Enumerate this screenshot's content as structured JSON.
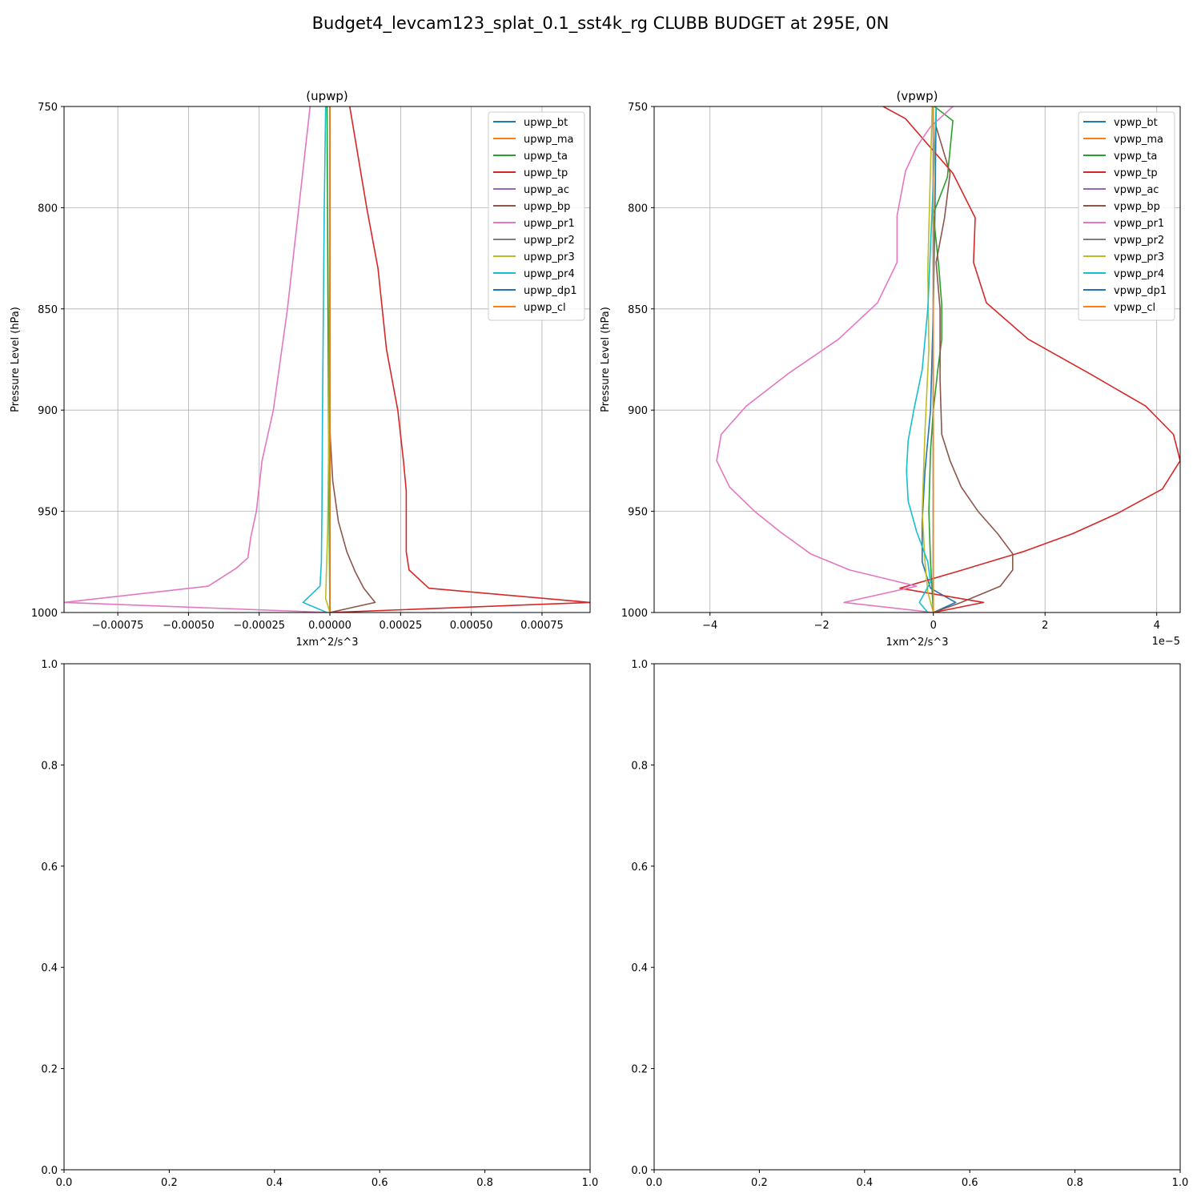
{
  "figure": {
    "suptitle": "Budget4_levcam123_splat_0.1_sst4k_rg CLUBB BUDGET at 295E, 0N"
  },
  "colors": {
    "bt": "#1f77b4",
    "ma": "#ff7f0e",
    "ta": "#2ca02c",
    "tp": "#d62728",
    "ac": "#9467bd",
    "bp": "#8c564b",
    "pr1": "#e377c2",
    "pr2": "#7f7f7f",
    "pr3": "#bcbd22",
    "pr4": "#17becf",
    "dp1": "#1f77b4",
    "cl": "#ff7f0e",
    "grid": "#b0b0b0"
  },
  "chart_data": [
    {
      "type": "line",
      "title": "(upwp)",
      "xlabel": "1xm^2/s^3",
      "ylabel": "Pressure Level (hPa)",
      "xlim": [
        -0.00094,
        0.00092
      ],
      "ylim": [
        1000,
        750
      ],
      "y_inverted": true,
      "xticks": [
        -0.00075,
        -0.0005,
        -0.00025,
        0,
        0.00025,
        0.0005,
        0.00075
      ],
      "xtick_labels": [
        "−0.00075",
        "−0.00050",
        "−0.00025",
        "0.00000",
        "0.00025",
        "0.00050",
        "0.00075"
      ],
      "yticks": [
        750,
        800,
        850,
        900,
        950,
        1000
      ],
      "ytick_labels": [
        "750",
        "800",
        "850",
        "900",
        "950",
        "1000"
      ],
      "offset_label": "",
      "grid": true,
      "legend_position": "upper right",
      "series": [
        {
          "name": "upwp_bt",
          "color_key": "bt",
          "points": [
            [
              0,
              750
            ],
            [
              0,
              1000
            ]
          ]
        },
        {
          "name": "upwp_ma",
          "color_key": "ma",
          "points": [
            [
              0,
              750
            ],
            [
              0,
              1000
            ]
          ]
        },
        {
          "name": "upwp_ta",
          "color_key": "ta",
          "points": [
            [
              -1e-05,
              750
            ],
            [
              -7e-06,
              850
            ],
            [
              -3e-06,
              950
            ],
            [
              0,
              1000
            ]
          ]
        },
        {
          "name": "upwp_tp",
          "color_key": "tp",
          "points": [
            [
              7e-05,
              750
            ],
            [
              0.00013,
              800
            ],
            [
              0.00017,
              830
            ],
            [
              0.0002,
              870
            ],
            [
              0.00024,
              900
            ],
            [
              0.00026,
              925
            ],
            [
              0.00027,
              940
            ],
            [
              0.00027,
              970
            ],
            [
              0.00028,
              979
            ],
            [
              0.00035,
              988
            ],
            [
              0.00092,
              995
            ],
            [
              0,
              1000
            ]
          ]
        },
        {
          "name": "upwp_ac",
          "color_key": "ac",
          "points": [
            [
              0,
              750
            ],
            [
              0,
              1000
            ]
          ]
        },
        {
          "name": "upwp_bp",
          "color_key": "bp",
          "points": [
            [
              0,
              750
            ],
            [
              0,
              850
            ],
            [
              0,
              910
            ],
            [
              1e-05,
              935
            ],
            [
              3e-05,
              955
            ],
            [
              6e-05,
              970
            ],
            [
              9e-05,
              980
            ],
            [
              0.00012,
              988
            ],
            [
              0.00016,
              995
            ],
            [
              0,
              1000
            ]
          ]
        },
        {
          "name": "upwp_pr1",
          "color_key": "pr1",
          "points": [
            [
              -7e-05,
              750
            ],
            [
              -0.00011,
              800
            ],
            [
              -0.00015,
              850
            ],
            [
              -0.0002,
              900
            ],
            [
              -0.00024,
              925
            ],
            [
              -0.00026,
              950
            ],
            [
              -0.00028,
              963
            ],
            [
              -0.00029,
              973
            ],
            [
              -0.00033,
              978
            ],
            [
              -0.00043,
              987
            ],
            [
              -0.00094,
              995
            ],
            [
              0,
              1000
            ]
          ]
        },
        {
          "name": "upwp_pr2",
          "color_key": "pr2",
          "points": [
            [
              0,
              750
            ],
            [
              0,
              1000
            ]
          ]
        },
        {
          "name": "upwp_pr3",
          "color_key": "pr3",
          "points": [
            [
              0,
              750
            ],
            [
              -3e-06,
              900
            ],
            [
              -8e-06,
              960
            ],
            [
              -1.5e-05,
              993
            ],
            [
              0,
              1000
            ]
          ]
        },
        {
          "name": "upwp_pr4",
          "color_key": "pr4",
          "points": [
            [
              -1.5e-05,
              750
            ],
            [
              -2e-05,
              800
            ],
            [
              -2.3e-05,
              850
            ],
            [
              -2.6e-05,
              900
            ],
            [
              -2.8e-05,
              950
            ],
            [
              -3e-05,
              975
            ],
            [
              -3.5e-05,
              987
            ],
            [
              -9.5e-05,
              995
            ],
            [
              -1e-05,
              1000
            ]
          ]
        },
        {
          "name": "upwp_dp1",
          "color_key": "dp1",
          "points": [
            [
              0,
              750
            ],
            [
              0,
              1000
            ]
          ]
        },
        {
          "name": "upwp_cl",
          "color_key": "cl",
          "points": [
            [
              0,
              750
            ],
            [
              0,
              1000
            ]
          ]
        }
      ]
    },
    {
      "type": "line",
      "title": "(vpwp)",
      "xlabel": "1xm^2/s^3",
      "ylabel": "Pressure Level (hPa)",
      "xlim": [
        -5.0,
        4.42
      ],
      "ylim": [
        1000,
        750
      ],
      "y_inverted": true,
      "xticks": [
        -4,
        -2,
        0,
        2,
        4
      ],
      "xtick_labels": [
        "−4",
        "−2",
        "0",
        "2",
        "4"
      ],
      "yticks": [
        750,
        800,
        850,
        900,
        950,
        1000
      ],
      "ytick_labels": [
        "750",
        "800",
        "850",
        "900",
        "950",
        "1000"
      ],
      "offset_label": "1e−5",
      "grid": true,
      "legend_position": "upper right",
      "series": [
        {
          "name": "vpwp_bt",
          "color_key": "bt",
          "points": [
            [
              0.05,
              750
            ],
            [
              0.03,
              800
            ],
            [
              0,
              850
            ],
            [
              -0.05,
              900
            ],
            [
              -0.15,
              930
            ],
            [
              -0.2,
              955
            ],
            [
              -0.2,
              975
            ],
            [
              -0.05,
              988
            ],
            [
              0.4,
              995
            ],
            [
              0,
              1000
            ]
          ]
        },
        {
          "name": "vpwp_ma",
          "color_key": "ma",
          "points": [
            [
              0,
              750
            ],
            [
              0,
              1000
            ]
          ]
        },
        {
          "name": "vpwp_ta",
          "color_key": "ta",
          "points": [
            [
              0.02,
              750
            ],
            [
              0.35,
              757
            ],
            [
              0.25,
              785
            ],
            [
              0,
              803
            ],
            [
              0.1,
              830
            ],
            [
              0.15,
              848
            ],
            [
              0.15,
              865
            ],
            [
              0.08,
              880
            ],
            [
              0,
              900
            ],
            [
              -0.05,
              920
            ],
            [
              -0.08,
              950
            ],
            [
              -0.05,
              975
            ],
            [
              0,
              1000
            ]
          ]
        },
        {
          "name": "vpwp_tp",
          "color_key": "tp",
          "points": [
            [
              -0.9,
              750
            ],
            [
              -0.5,
              756
            ],
            [
              0.35,
              783
            ],
            [
              0.75,
              805
            ],
            [
              0.72,
              827
            ],
            [
              0.95,
              847
            ],
            [
              1.7,
              865
            ],
            [
              2.8,
              882
            ],
            [
              3.8,
              898
            ],
            [
              4.3,
              912
            ],
            [
              4.42,
              925
            ],
            [
              4.1,
              939
            ],
            [
              3.3,
              951
            ],
            [
              2.5,
              961
            ],
            [
              1.6,
              970
            ],
            [
              0.4,
              980
            ],
            [
              -0.6,
              988
            ],
            [
              0.9,
              995
            ],
            [
              0,
              1000
            ]
          ]
        },
        {
          "name": "vpwp_ac",
          "color_key": "ac",
          "points": [
            [
              0,
              750
            ],
            [
              0,
              1000
            ]
          ]
        },
        {
          "name": "vpwp_bp",
          "color_key": "bp",
          "points": [
            [
              0.05,
              760
            ],
            [
              0.3,
              783
            ],
            [
              0.2,
              805
            ],
            [
              0.05,
              827
            ],
            [
              0.12,
              850
            ],
            [
              0.12,
              885
            ],
            [
              0.15,
              912
            ],
            [
              0.3,
              925
            ],
            [
              0.5,
              938
            ],
            [
              0.8,
              950
            ],
            [
              1.15,
              961
            ],
            [
              1.42,
              971
            ],
            [
              1.42,
              979
            ],
            [
              1.2,
              987
            ],
            [
              0.5,
              995
            ],
            [
              0,
              1000
            ]
          ]
        },
        {
          "name": "vpwp_pr1",
          "color_key": "pr1",
          "points": [
            [
              0.35,
              750
            ],
            [
              -0.05,
              760
            ],
            [
              -0.3,
              770
            ],
            [
              -0.5,
              782
            ],
            [
              -0.65,
              804
            ],
            [
              -0.65,
              827
            ],
            [
              -1.0,
              847
            ],
            [
              -1.7,
              865
            ],
            [
              -2.6,
              882
            ],
            [
              -3.35,
              898
            ],
            [
              -3.8,
              912
            ],
            [
              -3.88,
              925
            ],
            [
              -3.65,
              938
            ],
            [
              -3.2,
              950
            ],
            [
              -2.75,
              960
            ],
            [
              -2.2,
              971
            ],
            [
              -1.5,
              979
            ],
            [
              -0.3,
              987
            ],
            [
              -1.6,
              995
            ],
            [
              0,
              1000
            ]
          ]
        },
        {
          "name": "vpwp_pr2",
          "color_key": "pr2",
          "points": [
            [
              0,
              750
            ],
            [
              0,
              1000
            ]
          ]
        },
        {
          "name": "vpwp_pr3",
          "color_key": "pr3",
          "points": [
            [
              -0.02,
              750
            ],
            [
              -0.05,
              780
            ],
            [
              -0.1,
              830
            ],
            [
              -0.08,
              870
            ],
            [
              -0.15,
              910
            ],
            [
              -0.2,
              950
            ],
            [
              -0.15,
              975
            ],
            [
              -0.1,
              990
            ],
            [
              0,
              1000
            ]
          ]
        },
        {
          "name": "vpwp_pr4",
          "color_key": "pr4",
          "points": [
            [
              0.05,
              750
            ],
            [
              -0.02,
              800
            ],
            [
              -0.1,
              850
            ],
            [
              -0.2,
              880
            ],
            [
              -0.35,
              900
            ],
            [
              -0.45,
              915
            ],
            [
              -0.48,
              930
            ],
            [
              -0.45,
              945
            ],
            [
              -0.3,
              960
            ],
            [
              -0.1,
              975
            ],
            [
              -0.05,
              985
            ],
            [
              -0.25,
              995
            ],
            [
              -0.1,
              1000
            ]
          ]
        },
        {
          "name": "vpwp_dp1",
          "color_key": "dp1",
          "points": [
            [
              0,
              750
            ],
            [
              0,
              1000
            ]
          ]
        },
        {
          "name": "vpwp_cl",
          "color_key": "cl",
          "points": [
            [
              0,
              750
            ],
            [
              0,
              1000
            ]
          ]
        }
      ]
    },
    {
      "type": "line",
      "title": "",
      "xlabel": "",
      "ylabel": "",
      "xlim": [
        0,
        1
      ],
      "ylim": [
        0,
        1
      ],
      "y_inverted": false,
      "xticks": [
        0,
        0.2,
        0.4,
        0.6,
        0.8,
        1.0
      ],
      "xtick_labels": [
        "0.0",
        "0.2",
        "0.4",
        "0.6",
        "0.8",
        "1.0"
      ],
      "yticks": [
        0,
        0.2,
        0.4,
        0.6,
        0.8,
        1.0
      ],
      "ytick_labels": [
        "0.0",
        "0.2",
        "0.4",
        "0.6",
        "0.8",
        "1.0"
      ],
      "offset_label": "",
      "grid": false,
      "series": []
    },
    {
      "type": "line",
      "title": "",
      "xlabel": "",
      "ylabel": "",
      "xlim": [
        0,
        1
      ],
      "ylim": [
        0,
        1
      ],
      "y_inverted": false,
      "xticks": [
        0,
        0.2,
        0.4,
        0.6,
        0.8,
        1.0
      ],
      "xtick_labels": [
        "0.0",
        "0.2",
        "0.4",
        "0.6",
        "0.8",
        "1.0"
      ],
      "yticks": [
        0,
        0.2,
        0.4,
        0.6,
        0.8,
        1.0
      ],
      "ytick_labels": [
        "0.0",
        "0.2",
        "0.4",
        "0.6",
        "0.8",
        "1.0"
      ],
      "offset_label": "",
      "grid": false,
      "series": []
    }
  ]
}
